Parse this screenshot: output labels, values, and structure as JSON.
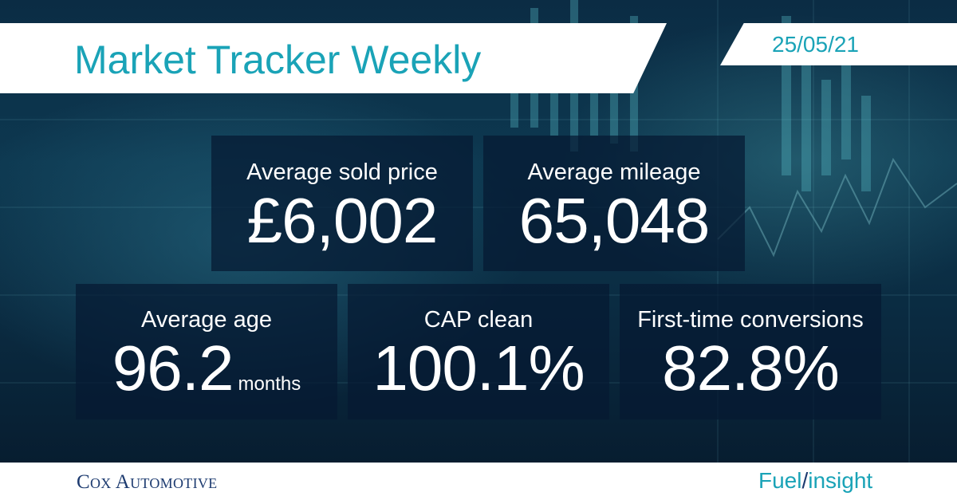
{
  "header": {
    "title": "Market Tracker Weekly",
    "date": "25/05/21"
  },
  "stats": {
    "avg_sold_price": {
      "label": "Average sold price",
      "value": "£6,002"
    },
    "avg_mileage": {
      "label": "Average mileage",
      "value": "65,048"
    },
    "avg_age": {
      "label": "Average age",
      "value": "96.2",
      "unit": "months"
    },
    "cap_clean": {
      "label": "CAP clean",
      "value": "100.1%"
    },
    "first_time_conversions": {
      "label": "First-time conversions",
      "value": "82.8%"
    }
  },
  "footer": {
    "brand_left": "Cox Automotive",
    "brand_right_part1": "Fuel",
    "brand_right_sep": "/",
    "brand_right_part2": "insight"
  },
  "colors": {
    "accent": "#1aa3b7",
    "navy": "#1d3b70",
    "card_bg": "#061932"
  }
}
